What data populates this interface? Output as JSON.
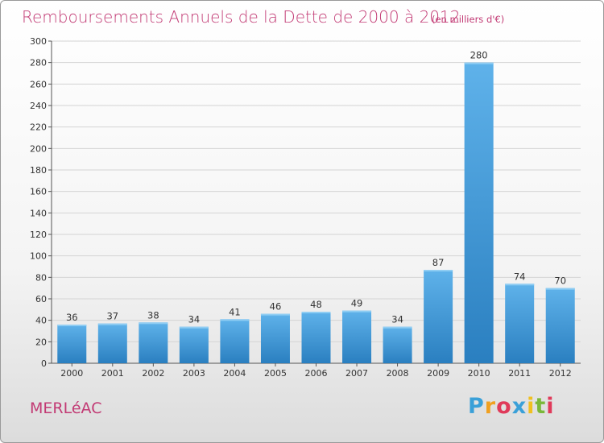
{
  "header": {
    "title": "Remboursements Annuels de la Dette de 2000 à 2012",
    "unit": "(en milliers d'€)"
  },
  "footer": {
    "commune": "MERLéAC",
    "logo_text": "Proxiti"
  },
  "colors": {
    "accent": "#c23a74",
    "bar_light": "#5aaee6",
    "bar_dark": "#2a7fc0",
    "grid": "#d0d0d0"
  },
  "chart_data": {
    "type": "bar",
    "title": "Remboursements Annuels de la Dette de 2000 à 2012",
    "subtitle": "(en milliers d'€)",
    "xlabel": "",
    "ylabel": "",
    "categories": [
      "2000",
      "2001",
      "2002",
      "2003",
      "2004",
      "2005",
      "2006",
      "2007",
      "2008",
      "2009",
      "2010",
      "2011",
      "2012"
    ],
    "values": [
      36,
      37,
      38,
      34,
      41,
      46,
      48,
      49,
      34,
      87,
      280,
      74,
      70
    ],
    "ylim": [
      0,
      300
    ],
    "yticks": [
      0,
      20,
      40,
      60,
      80,
      100,
      120,
      140,
      160,
      180,
      200,
      220,
      240,
      260,
      280,
      300
    ],
    "grid": true,
    "data_labels": true
  }
}
